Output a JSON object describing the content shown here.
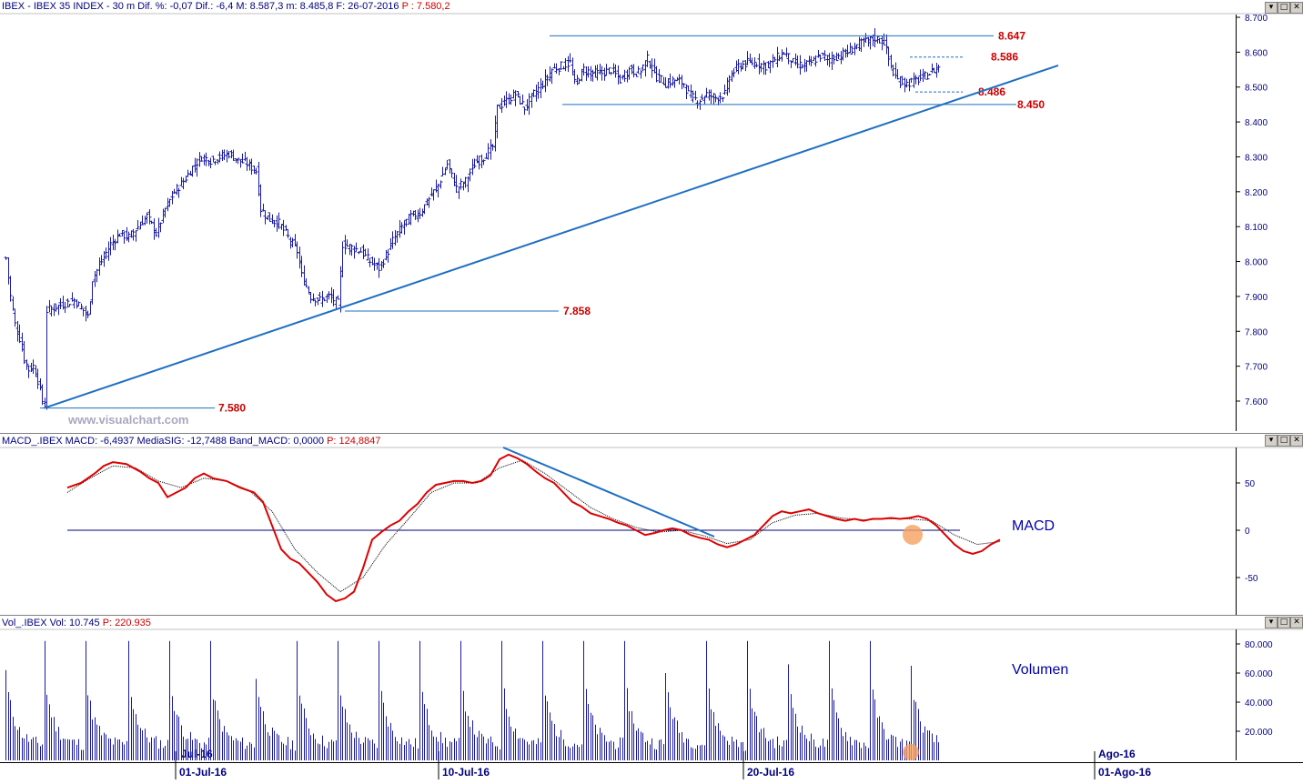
{
  "panels": {
    "price": {
      "header": "IBEX - IBEX 35 INDEX - 30 m  Dif. %: -0,07  Dif.: -6,4  M: 8.587,3  m: 8.485,8  F: 26-07-2016",
      "header_p": "P : 7.580,2",
      "watermark": "www.visualchart.com"
    },
    "macd": {
      "header": "MACD_.IBEX MACD: -6,4937  MediaSIG: -12,7488  Band_MACD: 0,0000",
      "header_p": "P: 124,8847",
      "label": "MACD"
    },
    "volume": {
      "header": "Vol_.IBEX Vol: 10.745",
      "header_p": "P: 220.935",
      "label": "Volumen"
    }
  },
  "window_buttons": [
    "▾",
    "□",
    "✕"
  ],
  "colors": {
    "price_bars": "#1a1aa0",
    "trendline": "#1f6fc0",
    "level_line": "#1f6fc0",
    "level_label": "#cc0000",
    "macd_line": "#dd0000",
    "signal_line": "#000000",
    "volume_bars": "#1a1aa0",
    "highlight": "#f5a060",
    "axis_text": "#000080"
  },
  "chart_data": [
    {
      "type": "ohlc",
      "title": "IBEX - IBEX 35 INDEX - 30 m",
      "ylim": [
        7520,
        8720
      ],
      "y_ticks": [
        "7.600",
        "7.700",
        "7.800",
        "7.900",
        "8.000",
        "8.100",
        "8.200",
        "8.300",
        "8.400",
        "8.500",
        "8.600",
        "8.700"
      ],
      "x_ticks": [
        "01-Jul-16",
        "10-Jul-16",
        "20-Jul-16",
        "01-Ago-16"
      ],
      "close_path": [
        [
          0,
          8010
        ],
        [
          2,
          7900
        ],
        [
          4,
          7820
        ],
        [
          6,
          7780
        ],
        [
          8,
          7720
        ],
        [
          10,
          7690
        ],
        [
          12,
          7700
        ],
        [
          14,
          7660
        ],
        [
          16,
          7600
        ],
        [
          17,
          7590
        ],
        [
          18,
          7860
        ],
        [
          22,
          7870
        ],
        [
          26,
          7880
        ],
        [
          30,
          7890
        ],
        [
          34,
          7860
        ],
        [
          36,
          7840
        ],
        [
          38,
          7950
        ],
        [
          42,
          8000
        ],
        [
          46,
          8050
        ],
        [
          50,
          8080
        ],
        [
          54,
          8070
        ],
        [
          58,
          8100
        ],
        [
          62,
          8130
        ],
        [
          66,
          8080
        ],
        [
          70,
          8150
        ],
        [
          74,
          8200
        ],
        [
          78,
          8230
        ],
        [
          82,
          8270
        ],
        [
          86,
          8300
        ],
        [
          90,
          8290
        ],
        [
          94,
          8300
        ],
        [
          98,
          8310
        ],
        [
          102,
          8290
        ],
        [
          106,
          8280
        ],
        [
          110,
          8260
        ],
        [
          112,
          8150
        ],
        [
          116,
          8120
        ],
        [
          120,
          8110
        ],
        [
          124,
          8070
        ],
        [
          128,
          8030
        ],
        [
          130,
          7960
        ],
        [
          134,
          7900
        ],
        [
          138,
          7890
        ],
        [
          142,
          7900
        ],
        [
          146,
          7880
        ],
        [
          148,
          8050
        ],
        [
          152,
          8040
        ],
        [
          156,
          8030
        ],
        [
          160,
          8000
        ],
        [
          164,
          7980
        ],
        [
          168,
          8030
        ],
        [
          170,
          8060
        ],
        [
          174,
          8100
        ],
        [
          178,
          8130
        ],
        [
          182,
          8140
        ],
        [
          186,
          8180
        ],
        [
          190,
          8220
        ],
        [
          194,
          8280
        ],
        [
          198,
          8210
        ],
        [
          202,
          8230
        ],
        [
          206,
          8280
        ],
        [
          210,
          8300
        ],
        [
          214,
          8330
        ],
        [
          216,
          8440
        ],
        [
          220,
          8460
        ],
        [
          224,
          8480
        ],
        [
          228,
          8440
        ],
        [
          232,
          8480
        ],
        [
          236,
          8510
        ],
        [
          240,
          8550
        ],
        [
          244,
          8560
        ],
        [
          248,
          8570
        ],
        [
          250,
          8510
        ],
        [
          254,
          8550
        ],
        [
          258,
          8540
        ],
        [
          262,
          8540
        ],
        [
          266,
          8550
        ],
        [
          270,
          8520
        ],
        [
          274,
          8550
        ],
        [
          278,
          8540
        ],
        [
          282,
          8580
        ],
        [
          286,
          8530
        ],
        [
          290,
          8510
        ],
        [
          294,
          8520
        ],
        [
          298,
          8510
        ],
        [
          300,
          8480
        ],
        [
          304,
          8460
        ],
        [
          308,
          8480
        ],
        [
          312,
          8470
        ],
        [
          316,
          8480
        ],
        [
          318,
          8530
        ],
        [
          322,
          8560
        ],
        [
          326,
          8570
        ],
        [
          330,
          8570
        ],
        [
          334,
          8560
        ],
        [
          338,
          8580
        ],
        [
          342,
          8600
        ],
        [
          346,
          8570
        ],
        [
          350,
          8560
        ],
        [
          354,
          8570
        ],
        [
          358,
          8590
        ],
        [
          362,
          8580
        ],
        [
          366,
          8590
        ],
        [
          370,
          8600
        ],
        [
          374,
          8620
        ],
        [
          378,
          8630
        ],
        [
          382,
          8640
        ],
        [
          386,
          8630
        ],
        [
          388,
          8580
        ],
        [
          390,
          8540
        ],
        [
          392,
          8520
        ],
        [
          396,
          8510
        ],
        [
          400,
          8520
        ],
        [
          404,
          8530
        ],
        [
          408,
          8550
        ],
        [
          410,
          8560
        ]
      ],
      "levels": [
        {
          "label": "8.647",
          "value": 8647
        },
        {
          "label": "8.586",
          "value": 8586
        },
        {
          "label": "8.486",
          "value": 8486
        },
        {
          "label": "8.450",
          "value": 8450
        },
        {
          "label": "7.858",
          "value": 7858
        },
        {
          "label": "7.580",
          "value": 7580
        }
      ],
      "trendline": {
        "from": [
          17,
          7580
        ],
        "to": [
          452,
          8510
        ]
      }
    },
    {
      "type": "line",
      "title": "MACD_.IBEX",
      "ylim": [
        -90,
        90
      ],
      "y_ticks": [
        "50",
        "0",
        "-50"
      ],
      "series": [
        {
          "name": "MACD",
          "points": [
            [
              0,
              45
            ],
            [
              6,
              50
            ],
            [
              12,
              60
            ],
            [
              16,
              68
            ],
            [
              20,
              72
            ],
            [
              26,
              70
            ],
            [
              32,
              62
            ],
            [
              36,
              55
            ],
            [
              40,
              50
            ],
            [
              44,
              35
            ],
            [
              48,
              40
            ],
            [
              52,
              45
            ],
            [
              56,
              55
            ],
            [
              60,
              60
            ],
            [
              64,
              55
            ],
            [
              70,
              52
            ],
            [
              76,
              45
            ],
            [
              82,
              40
            ],
            [
              86,
              30
            ],
            [
              90,
              5
            ],
            [
              94,
              -20
            ],
            [
              98,
              -30
            ],
            [
              102,
              -35
            ],
            [
              106,
              -45
            ],
            [
              110,
              -55
            ],
            [
              114,
              -68
            ],
            [
              118,
              -75
            ],
            [
              122,
              -72
            ],
            [
              126,
              -65
            ],
            [
              130,
              -40
            ],
            [
              134,
              -10
            ],
            [
              138,
              -2
            ],
            [
              142,
              5
            ],
            [
              146,
              10
            ],
            [
              150,
              20
            ],
            [
              154,
              28
            ],
            [
              158,
              40
            ],
            [
              162,
              48
            ],
            [
              166,
              50
            ],
            [
              170,
              52
            ],
            [
              174,
              52
            ],
            [
              178,
              50
            ],
            [
              182,
              52
            ],
            [
              186,
              58
            ],
            [
              190,
              75
            ],
            [
              194,
              80
            ],
            [
              198,
              76
            ],
            [
              202,
              70
            ],
            [
              206,
              62
            ],
            [
              210,
              55
            ],
            [
              214,
              50
            ],
            [
              218,
              40
            ],
            [
              222,
              30
            ],
            [
              226,
              25
            ],
            [
              230,
              18
            ],
            [
              234,
              15
            ],
            [
              238,
              12
            ],
            [
              242,
              8
            ],
            [
              246,
              5
            ],
            [
              250,
              0
            ],
            [
              254,
              -5
            ],
            [
              258,
              -3
            ],
            [
              262,
              0
            ],
            [
              266,
              2
            ],
            [
              270,
              0
            ],
            [
              274,
              -5
            ],
            [
              278,
              -8
            ],
            [
              282,
              -10
            ],
            [
              286,
              -15
            ],
            [
              290,
              -18
            ],
            [
              294,
              -15
            ],
            [
              298,
              -10
            ],
            [
              302,
              -5
            ],
            [
              306,
              5
            ],
            [
              310,
              15
            ],
            [
              314,
              20
            ],
            [
              318,
              18
            ],
            [
              322,
              20
            ],
            [
              326,
              22
            ],
            [
              330,
              18
            ],
            [
              334,
              15
            ],
            [
              338,
              12
            ],
            [
              342,
              10
            ],
            [
              346,
              12
            ],
            [
              350,
              10
            ],
            [
              354,
              12
            ],
            [
              358,
              12
            ],
            [
              362,
              13
            ],
            [
              366,
              12
            ],
            [
              370,
              13
            ],
            [
              374,
              15
            ],
            [
              378,
              12
            ],
            [
              382,
              5
            ],
            [
              386,
              -5
            ],
            [
              390,
              -15
            ],
            [
              394,
              -22
            ],
            [
              398,
              -25
            ],
            [
              402,
              -22
            ],
            [
              406,
              -15
            ],
            [
              410,
              -10
            ]
          ]
        },
        {
          "name": "MediaSIG",
          "points": [
            [
              0,
              40
            ],
            [
              10,
              55
            ],
            [
              20,
              68
            ],
            [
              30,
              66
            ],
            [
              40,
              52
            ],
            [
              50,
              45
            ],
            [
              60,
              55
            ],
            [
              70,
              52
            ],
            [
              80,
              42
            ],
            [
              90,
              20
            ],
            [
              100,
              -20
            ],
            [
              110,
              -45
            ],
            [
              120,
              -65
            ],
            [
              130,
              -50
            ],
            [
              140,
              -15
            ],
            [
              150,
              12
            ],
            [
              160,
              40
            ],
            [
              170,
              50
            ],
            [
              180,
              50
            ],
            [
              190,
              66
            ],
            [
              200,
              74
            ],
            [
              210,
              60
            ],
            [
              220,
              42
            ],
            [
              230,
              24
            ],
            [
              240,
              12
            ],
            [
              250,
              3
            ],
            [
              260,
              -2
            ],
            [
              270,
              0
            ],
            [
              280,
              -6
            ],
            [
              290,
              -14
            ],
            [
              300,
              -10
            ],
            [
              310,
              8
            ],
            [
              320,
              16
            ],
            [
              330,
              18
            ],
            [
              340,
              13
            ],
            [
              350,
              11
            ],
            [
              360,
              12
            ],
            [
              370,
              12
            ],
            [
              380,
              10
            ],
            [
              390,
              -5
            ],
            [
              400,
              -15
            ],
            [
              410,
              -12
            ]
          ]
        }
      ],
      "trendline": {
        "from": [
          194,
          85
        ],
        "to": [
          300,
          -8
        ]
      }
    },
    {
      "type": "bar",
      "title": "Vol_.IBEX",
      "ylim": [
        0,
        88000
      ],
      "y_ticks": [
        "20.000",
        "40.000",
        "60.000",
        "80.000"
      ],
      "spikes": [
        0,
        17,
        35,
        54,
        72,
        90,
        110,
        128,
        146,
        164,
        182,
        200,
        218,
        236,
        254,
        272,
        290,
        308,
        326,
        344,
        362,
        380,
        398
      ],
      "spike_values": [
        62000,
        82000,
        82000,
        82000,
        82000,
        82000,
        56000,
        82000,
        82000,
        82000,
        82000,
        82000,
        82000,
        82000,
        82000,
        82000,
        60000,
        82000,
        82000,
        66000,
        82000,
        82000,
        65000
      ],
      "xlabel_ago": "Ago-16",
      "xlabel_jul": "Jul-16"
    }
  ]
}
